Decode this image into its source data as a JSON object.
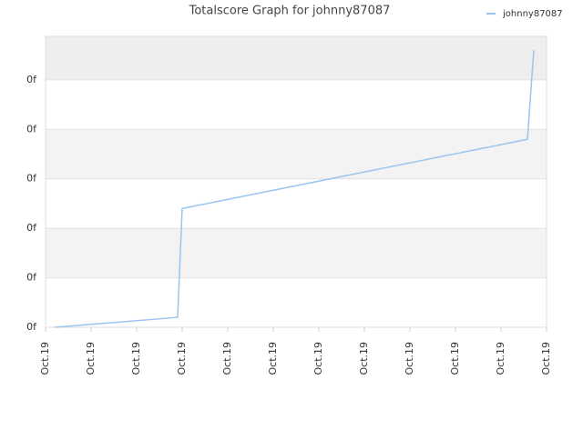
{
  "chart_data": {
    "type": "line",
    "title": "Totalscore Graph for johnny87087",
    "x": [
      0.2,
      2.9,
      3.0,
      10.58,
      10.72
    ],
    "series": [
      {
        "name": "johnny87087",
        "color": "#99c6f0",
        "values": [
          0,
          0.2,
          2.4,
          3.8,
          5.6
        ]
      }
    ],
    "xlim": [
      0,
      11
    ],
    "xticks": [
      {
        "value": 0,
        "label": "Oct.19"
      },
      {
        "value": 1,
        "label": "Oct.19"
      },
      {
        "value": 2,
        "label": "Oct.19"
      },
      {
        "value": 3,
        "label": "Oct.19"
      },
      {
        "value": 4,
        "label": "Oct.19"
      },
      {
        "value": 5,
        "label": "Oct.19"
      },
      {
        "value": 6,
        "label": "Oct.19"
      },
      {
        "value": 7,
        "label": "Oct.19"
      },
      {
        "value": 8,
        "label": "Oct.19"
      },
      {
        "value": 9,
        "label": "Oct.19"
      },
      {
        "value": 10,
        "label": "Oct.19"
      },
      {
        "value": 11,
        "label": "Oct.19"
      }
    ],
    "ylim": [
      0,
      5.88
    ],
    "yticks": [
      {
        "value": 0,
        "label": "0f"
      },
      {
        "value": 1,
        "label": "0f"
      },
      {
        "value": 2,
        "label": "0f"
      },
      {
        "value": 3,
        "label": "0f"
      },
      {
        "value": 4,
        "label": "0f"
      },
      {
        "value": 5,
        "label": "0f"
      }
    ],
    "grid": true,
    "legend": "top-right"
  }
}
